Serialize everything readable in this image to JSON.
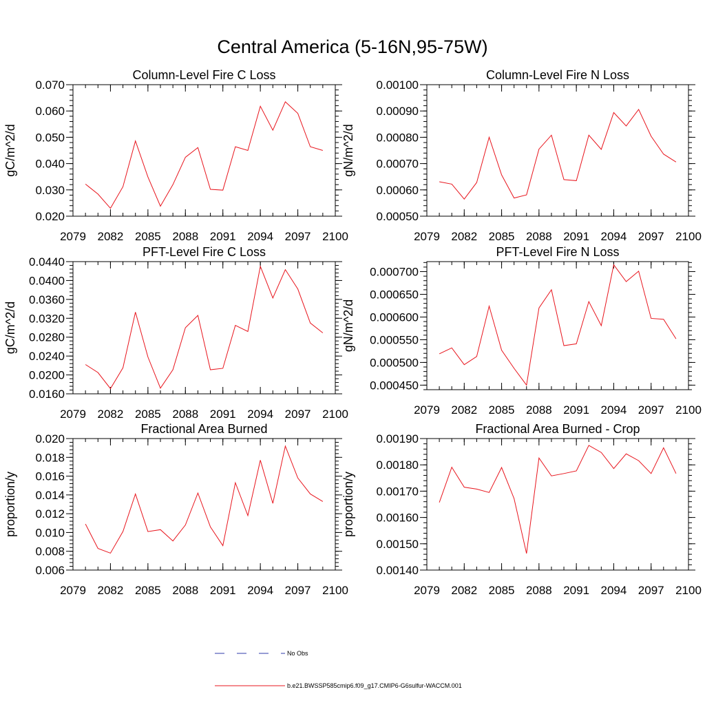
{
  "figure": {
    "title": "Central America (5-16N,95-75W)"
  },
  "colors": {
    "series": "#e8141c",
    "no_obs": "#2c3aa8",
    "axis": "#000000"
  },
  "legend": {
    "placement": "bottom-center",
    "entries": [
      {
        "label": "No Obs",
        "style": "dashed",
        "color": "#2c3aa8"
      },
      {
        "label": "b.e21.BWSSP585cmip6.f09_g17.CMIP6-G6sulfur-WACCM.001",
        "style": "solid",
        "color": "#e8141c"
      }
    ]
  },
  "chart_data": [
    {
      "type": "line",
      "title": "Column-Level Fire C Loss",
      "xlabel": "",
      "ylabel": "gC/m^2/d",
      "xlim": [
        2079,
        2100
      ],
      "ylim": [
        0.02,
        0.07
      ],
      "xticks": [
        "2079",
        "2082",
        "2085",
        "2088",
        "2091",
        "2094",
        "2097",
        "2100"
      ],
      "yticks": [
        "0.020",
        "0.030",
        "0.040",
        "0.050",
        "0.060",
        "0.070"
      ],
      "grid": false,
      "x": [
        2080,
        2081,
        2082,
        2083,
        2084,
        2085,
        2086,
        2087,
        2088,
        2089,
        2090,
        2091,
        2092,
        2093,
        2094,
        2095,
        2096,
        2097,
        2098,
        2099
      ],
      "series": [
        {
          "name": "b.e21.BWSSP585cmip6.f09_g17.CMIP6-G6sulfur-WACCM.001",
          "values": [
            0.0322,
            0.0284,
            0.023,
            0.0312,
            0.0486,
            0.0349,
            0.0238,
            0.032,
            0.0424,
            0.0461,
            0.0302,
            0.0299,
            0.0464,
            0.045,
            0.0618,
            0.0527,
            0.0635,
            0.0591,
            0.0464,
            0.045
          ]
        }
      ]
    },
    {
      "type": "line",
      "title": "Column-Level Fire N Loss",
      "xlabel": "",
      "ylabel": "gN/m^2/d",
      "xlim": [
        2079,
        2100
      ],
      "ylim": [
        0.0005,
        0.001
      ],
      "xticks": [
        "2079",
        "2082",
        "2085",
        "2088",
        "2091",
        "2094",
        "2097",
        "2100"
      ],
      "yticks": [
        "0.00050",
        "0.00060",
        "0.00070",
        "0.00080",
        "0.00090",
        "0.00100"
      ],
      "grid": false,
      "x": [
        2080,
        2081,
        2082,
        2083,
        2084,
        2085,
        2086,
        2087,
        2088,
        2089,
        2090,
        2091,
        2092,
        2093,
        2094,
        2095,
        2096,
        2097,
        2098,
        2099
      ],
      "series": [
        {
          "name": "b.e21.BWSSP585cmip6.f09_g17.CMIP6-G6sulfur-WACCM.001",
          "values": [
            0.000631,
            0.000622,
            0.000565,
            0.000628,
            0.0008,
            0.000657,
            0.000569,
            0.000581,
            0.000755,
            0.000808,
            0.000639,
            0.000635,
            0.000808,
            0.000754,
            0.000894,
            0.000843,
            0.000906,
            0.000804,
            0.000736,
            0.000706
          ]
        }
      ]
    },
    {
      "type": "line",
      "title": "PFT-Level Fire C Loss",
      "xlabel": "",
      "ylabel": "gC/m^2/d",
      "xlim": [
        2079,
        2100
      ],
      "ylim": [
        0.016,
        0.044
      ],
      "xticks": [
        "2079",
        "2082",
        "2085",
        "2088",
        "2091",
        "2094",
        "2097",
        "2100"
      ],
      "yticks": [
        "0.0160",
        "0.0200",
        "0.0240",
        "0.0280",
        "0.0320",
        "0.0360",
        "0.0400",
        "0.0440"
      ],
      "grid": false,
      "x": [
        2080,
        2081,
        2082,
        2083,
        2084,
        2085,
        2086,
        2087,
        2088,
        2089,
        2090,
        2091,
        2092,
        2093,
        2094,
        2095,
        2096,
        2097,
        2098,
        2099
      ],
      "series": [
        {
          "name": "b.e21.BWSSP585cmip6.f09_g17.CMIP6-G6sulfur-WACCM.001",
          "values": [
            0.0222,
            0.0205,
            0.0171,
            0.0215,
            0.0333,
            0.0238,
            0.0172,
            0.0211,
            0.03,
            0.0326,
            0.0211,
            0.0214,
            0.0305,
            0.0292,
            0.043,
            0.0363,
            0.0423,
            0.0382,
            0.031,
            0.0289
          ]
        }
      ]
    },
    {
      "type": "line",
      "title": "PFT-Level Fire N Loss",
      "xlabel": "",
      "ylabel": "gN/m^2/d",
      "xlim": [
        2079,
        2100
      ],
      "ylim": [
        0.00044,
        0.000722
      ],
      "xticks": [
        "2079",
        "2082",
        "2085",
        "2088",
        "2091",
        "2094",
        "2097",
        "2100"
      ],
      "yticks": [
        "0.000450",
        "0.000500",
        "0.000550",
        "0.000600",
        "0.000650",
        "0.000700"
      ],
      "grid": false,
      "x": [
        2080,
        2081,
        2082,
        2083,
        2084,
        2085,
        2086,
        2087,
        2088,
        2089,
        2090,
        2091,
        2092,
        2093,
        2094,
        2095,
        2096,
        2097,
        2098,
        2099
      ],
      "series": [
        {
          "name": "b.e21.BWSSP585cmip6.f09_g17.CMIP6-G6sulfur-WACCM.001",
          "values": [
            0.000519,
            0.000532,
            0.000495,
            0.000513,
            0.000624,
            0.000527,
            0.000487,
            0.00045,
            0.00062,
            0.00066,
            0.000537,
            0.000541,
            0.000634,
            0.000581,
            0.000715,
            0.000678,
            0.000701,
            0.000597,
            0.000595,
            0.000552
          ]
        }
      ]
    },
    {
      "type": "line",
      "title": "Fractional Area Burned",
      "xlabel": "",
      "ylabel": "proportion/y",
      "xlim": [
        2079,
        2100
      ],
      "ylim": [
        0.006,
        0.02
      ],
      "xticks": [
        "2079",
        "2082",
        "2085",
        "2088",
        "2091",
        "2094",
        "2097",
        "2100"
      ],
      "yticks": [
        "0.006",
        "0.008",
        "0.010",
        "0.012",
        "0.014",
        "0.016",
        "0.018",
        "0.020"
      ],
      "grid": false,
      "x": [
        2080,
        2081,
        2082,
        2083,
        2084,
        2085,
        2086,
        2087,
        2088,
        2089,
        2090,
        2091,
        2092,
        2093,
        2094,
        2095,
        2096,
        2097,
        2098,
        2099
      ],
      "series": [
        {
          "name": "b.e21.BWSSP585cmip6.f09_g17.CMIP6-G6sulfur-WACCM.001",
          "values": [
            0.0109,
            0.0083,
            0.0078,
            0.0101,
            0.0141,
            0.0101,
            0.0103,
            0.0091,
            0.0108,
            0.0142,
            0.0106,
            0.0086,
            0.0153,
            0.0118,
            0.0177,
            0.0131,
            0.0192,
            0.0158,
            0.0141,
            0.0133
          ]
        }
      ]
    },
    {
      "type": "line",
      "title": "Fractional Area Burned - Crop",
      "xlabel": "",
      "ylabel": "proportion/y",
      "xlim": [
        2079,
        2100
      ],
      "ylim": [
        0.0014,
        0.0019
      ],
      "xticks": [
        "2079",
        "2082",
        "2085",
        "2088",
        "2091",
        "2094",
        "2097",
        "2100"
      ],
      "yticks": [
        "0.00140",
        "0.00150",
        "0.00160",
        "0.00170",
        "0.00180",
        "0.00190"
      ],
      "grid": false,
      "x": [
        2080,
        2081,
        2082,
        2083,
        2084,
        2085,
        2086,
        2087,
        2088,
        2089,
        2090,
        2091,
        2092,
        2093,
        2094,
        2095,
        2096,
        2097,
        2098,
        2099
      ],
      "series": [
        {
          "name": "b.e21.BWSSP585cmip6.f09_g17.CMIP6-G6sulfur-WACCM.001",
          "values": [
            0.001657,
            0.001791,
            0.001715,
            0.001708,
            0.001695,
            0.00179,
            0.001672,
            0.001463,
            0.001826,
            0.001758,
            0.001767,
            0.001777,
            0.001874,
            0.001847,
            0.001786,
            0.001842,
            0.001816,
            0.001767,
            0.001865,
            0.001767
          ]
        }
      ]
    }
  ]
}
